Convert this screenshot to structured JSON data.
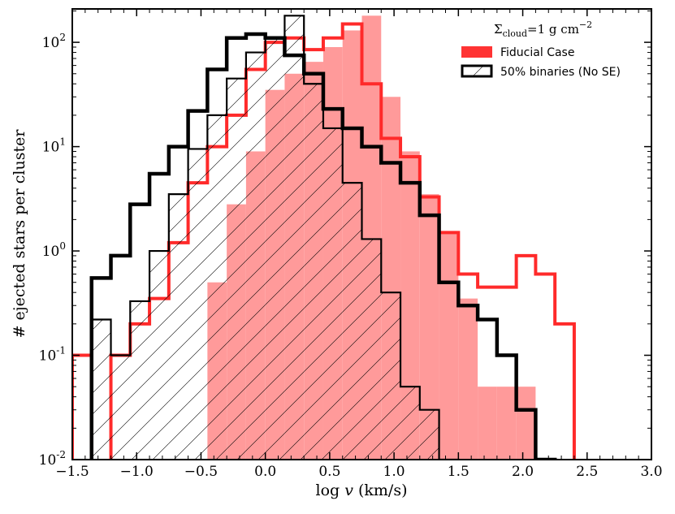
{
  "chart_data": {
    "type": "histogram-step",
    "title": "",
    "xlabel_prefix": "log ",
    "xlabel_var": "v",
    "xlabel_units": " (km/s)",
    "ylabel": "# ejected stars per cluster",
    "xlim": [
      -1.5,
      3.0
    ],
    "ylim_log10": [
      -2,
      2.32
    ],
    "yscale": "log",
    "x_ticks": [
      -1.5,
      -1.0,
      -0.5,
      0.0,
      0.5,
      1.0,
      1.5,
      2.0,
      2.5,
      3.0
    ],
    "x_tick_labels": [
      "−1.5",
      "−1.0",
      "−0.5",
      "0.0",
      "0.5",
      "1.0",
      "1.5",
      "2.0",
      "2.5",
      "3.0"
    ],
    "y_tick_base": "10",
    "y_tick_exponents": [
      "-2",
      "-1",
      "0",
      "1",
      "2"
    ],
    "y_tick_values_log10": [
      -2,
      -1,
      0,
      1,
      2
    ],
    "bin_edges": [
      -1.5,
      -1.35,
      -1.2,
      -1.05,
      -0.9,
      -0.75,
      -0.6,
      -0.45,
      -0.3,
      -0.15,
      0.0,
      0.15,
      0.3,
      0.45,
      0.6,
      0.75,
      0.9,
      1.05,
      1.2,
      1.35,
      1.5,
      1.65,
      1.8,
      1.95,
      2.1,
      2.25,
      2.4,
      2.55,
      2.7,
      2.85,
      3.0
    ],
    "series": [
      {
        "name": "Fiducial Case filled",
        "style": "filled",
        "color": "#ff9a9a",
        "values": [
          0,
          0,
          0,
          0,
          0,
          0,
          0,
          0.5,
          2.8,
          9,
          35,
          50,
          65,
          90,
          130,
          180,
          30,
          9,
          3.5,
          1.5,
          0.35,
          0.05,
          0.05,
          0.05,
          0,
          0,
          0,
          0,
          0,
          0
        ]
      },
      {
        "name": "Fiducial Case",
        "style": "step",
        "color": "#ff2a2a",
        "values": [
          0.1,
          0,
          0.1,
          0.2,
          0.35,
          1.2,
          4.5,
          10,
          20,
          55,
          100,
          110,
          85,
          110,
          150,
          40,
          12,
          8,
          3.3,
          1.5,
          0.6,
          0.45,
          0.45,
          0.9,
          0.6,
          0.2,
          0,
          0,
          0,
          0
        ]
      },
      {
        "name": "50% binaries (No SE) hatched",
        "style": "step-hatched",
        "color": "#000000",
        "values": [
          0,
          0.22,
          0.1,
          0.33,
          1.0,
          3.5,
          9.5,
          20,
          45,
          80,
          110,
          180,
          40,
          15,
          4.5,
          1.3,
          0.4,
          0.05,
          0.03,
          0.01,
          0,
          0,
          0,
          0,
          0,
          0,
          0,
          0,
          0,
          0
        ]
      },
      {
        "name": "50% binaries (No SE)",
        "style": "step-thick",
        "color": "#000000",
        "values": [
          0,
          0.55,
          0.9,
          2.8,
          5.5,
          10,
          22,
          55,
          110,
          120,
          110,
          75,
          50,
          23,
          15,
          10,
          7,
          4.5,
          2.2,
          0.5,
          0.3,
          0.22,
          0.1,
          0.03,
          0.01,
          0,
          0,
          0,
          0,
          0
        ]
      }
    ],
    "legend": {
      "title_prefix": "Σ",
      "title_subscript": "cloud",
      "title_suffix": "=1 g cm",
      "title_superscript": "−2",
      "entries": [
        {
          "label": "Fiducial Case",
          "color": "#ff3333",
          "style": "filled"
        },
        {
          "label": "50% binaries (No SE)",
          "color": "#000000",
          "style": "hatched-box"
        }
      ],
      "position": "top-right"
    }
  }
}
